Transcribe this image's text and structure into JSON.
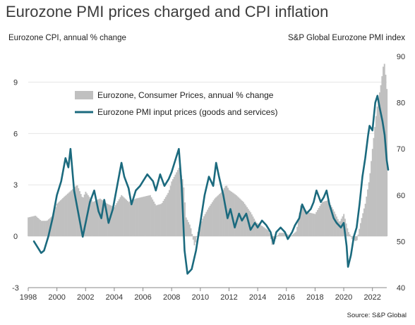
{
  "title": "Eurozone PMI prices charged and CPI inflation",
  "left_axis_title": "Eurozone CPI, annual % change",
  "right_axis_title": "S&P Global Eurozone PMI index",
  "source": "Source: S&P Global",
  "colors": {
    "cpi_bars": "#c0c0c0",
    "pmi_line": "#1b6a7e",
    "grid": "#e6e6e6",
    "axis": "#888888"
  },
  "chart_data": {
    "type": "bar",
    "title": "Eurozone PMI prices charged and CPI inflation",
    "grid": true,
    "legend": "upper-left-center",
    "x_axis": {
      "range": [
        1998,
        2023
      ],
      "ticks": [
        "1998",
        "2000",
        "2002",
        "2004",
        "2006",
        "2008",
        "2010",
        "2012",
        "2014",
        "2016",
        "2018",
        "2020",
        "2022"
      ]
    },
    "y_left": {
      "label": "Eurozone CPI, annual % change",
      "range": [
        -3,
        10.5
      ],
      "ticks": [
        "-3",
        "0",
        "3",
        "6",
        "9"
      ]
    },
    "y_right": {
      "label": "S&P Global Eurozone PMI index",
      "range": [
        40,
        90
      ],
      "ticks": [
        "40",
        "50",
        "60",
        "70",
        "80",
        "90"
      ]
    },
    "series": [
      {
        "name": "Eurozone, Consumer Prices, annual % change",
        "type": "bar",
        "axis": "left",
        "points": [
          [
            1998.0,
            1.1
          ],
          [
            1998.5,
            1.2
          ],
          [
            1998.9,
            0.9
          ],
          [
            1999.3,
            0.9
          ],
          [
            1999.7,
            1.2
          ],
          [
            2000.0,
            1.9
          ],
          [
            2000.5,
            2.3
          ],
          [
            2000.9,
            2.6
          ],
          [
            2001.4,
            3.0
          ],
          [
            2001.8,
            2.2
          ],
          [
            2002.0,
            2.6
          ],
          [
            2002.5,
            2.0
          ],
          [
            2003.0,
            2.2
          ],
          [
            2003.5,
            1.9
          ],
          [
            2004.0,
            1.7
          ],
          [
            2004.5,
            2.4
          ],
          [
            2005.0,
            2.0
          ],
          [
            2005.5,
            2.2
          ],
          [
            2006.0,
            2.3
          ],
          [
            2006.5,
            2.4
          ],
          [
            2006.9,
            1.8
          ],
          [
            2007.3,
            1.9
          ],
          [
            2007.8,
            2.6
          ],
          [
            2008.0,
            3.2
          ],
          [
            2008.5,
            4.0
          ],
          [
            2008.8,
            3.2
          ],
          [
            2009.0,
            1.1
          ],
          [
            2009.3,
            0.6
          ],
          [
            2009.6,
            -0.6
          ],
          [
            2009.9,
            0.5
          ],
          [
            2010.2,
            1.1
          ],
          [
            2010.6,
            1.7
          ],
          [
            2011.0,
            2.2
          ],
          [
            2011.5,
            2.6
          ],
          [
            2011.8,
            3.0
          ],
          [
            2012.0,
            2.7
          ],
          [
            2012.5,
            2.4
          ],
          [
            2013.0,
            2.0
          ],
          [
            2013.5,
            1.4
          ],
          [
            2013.9,
            0.8
          ],
          [
            2014.3,
            0.6
          ],
          [
            2014.8,
            0.3
          ],
          [
            2015.0,
            -0.5
          ],
          [
            2015.5,
            0.2
          ],
          [
            2015.9,
            0.2
          ],
          [
            2016.3,
            0.0
          ],
          [
            2016.7,
            0.3
          ],
          [
            2017.0,
            1.8
          ],
          [
            2017.5,
            1.4
          ],
          [
            2018.0,
            1.3
          ],
          [
            2018.5,
            2.0
          ],
          [
            2018.9,
            2.1
          ],
          [
            2019.3,
            1.5
          ],
          [
            2019.7,
            0.8
          ],
          [
            2020.0,
            1.3
          ],
          [
            2020.3,
            0.3
          ],
          [
            2020.6,
            -0.2
          ],
          [
            2020.9,
            -0.3
          ],
          [
            2021.2,
            0.9
          ],
          [
            2021.5,
            1.9
          ],
          [
            2021.8,
            3.4
          ],
          [
            2022.0,
            5.1
          ],
          [
            2022.3,
            7.4
          ],
          [
            2022.6,
            8.9
          ],
          [
            2022.75,
            9.9
          ],
          [
            2022.85,
            10.1
          ],
          [
            2023.0,
            8.6
          ]
        ]
      },
      {
        "name": "Eurozone PMI input prices (goods and services)",
        "type": "line",
        "axis": "right",
        "points": [
          [
            1998.4,
            50.0
          ],
          [
            1998.7,
            48.5
          ],
          [
            1998.9,
            47.5
          ],
          [
            1999.1,
            48.0
          ],
          [
            1999.4,
            51.0
          ],
          [
            1999.7,
            55.0
          ],
          [
            2000.0,
            60.0
          ],
          [
            2000.3,
            63.0
          ],
          [
            2000.6,
            68.0
          ],
          [
            2000.8,
            66.0
          ],
          [
            2000.95,
            70.0
          ],
          [
            2001.2,
            61.0
          ],
          [
            2001.5,
            56.0
          ],
          [
            2001.8,
            51.0
          ],
          [
            2002.0,
            54.0
          ],
          [
            2002.3,
            58.5
          ],
          [
            2002.6,
            61.0
          ],
          [
            2002.9,
            56.5
          ],
          [
            2003.1,
            55.0
          ],
          [
            2003.3,
            59.0
          ],
          [
            2003.6,
            54.0
          ],
          [
            2003.9,
            57.0
          ],
          [
            2004.2,
            62.0
          ],
          [
            2004.5,
            67.0
          ],
          [
            2004.7,
            64.0
          ],
          [
            2005.0,
            61.5
          ],
          [
            2005.2,
            58.0
          ],
          [
            2005.5,
            61.0
          ],
          [
            2005.8,
            62.0
          ],
          [
            2006.0,
            63.0
          ],
          [
            2006.3,
            64.5
          ],
          [
            2006.7,
            63.0
          ],
          [
            2006.9,
            61.0
          ],
          [
            2007.2,
            64.5
          ],
          [
            2007.5,
            62.0
          ],
          [
            2007.8,
            63.5
          ],
          [
            2008.0,
            65.0
          ],
          [
            2008.3,
            68.0
          ],
          [
            2008.5,
            70.0
          ],
          [
            2008.7,
            62.0
          ],
          [
            2008.9,
            48.0
          ],
          [
            2009.1,
            43.0
          ],
          [
            2009.4,
            44.0
          ],
          [
            2009.7,
            48.0
          ],
          [
            2010.0,
            54.0
          ],
          [
            2010.3,
            60.0
          ],
          [
            2010.6,
            64.0
          ],
          [
            2010.9,
            62.0
          ],
          [
            2011.1,
            67.0
          ],
          [
            2011.3,
            64.0
          ],
          [
            2011.6,
            60.0
          ],
          [
            2011.9,
            55.0
          ],
          [
            2012.1,
            57.0
          ],
          [
            2012.4,
            53.0
          ],
          [
            2012.7,
            56.0
          ],
          [
            2012.9,
            54.5
          ],
          [
            2013.2,
            56.0
          ],
          [
            2013.5,
            52.5
          ],
          [
            2013.8,
            54.0
          ],
          [
            2014.0,
            53.0
          ],
          [
            2014.3,
            54.5
          ],
          [
            2014.6,
            53.5
          ],
          [
            2014.9,
            52.0
          ],
          [
            2015.1,
            49.5
          ],
          [
            2015.3,
            52.0
          ],
          [
            2015.6,
            53.0
          ],
          [
            2015.9,
            52.0
          ],
          [
            2016.1,
            50.5
          ],
          [
            2016.4,
            52.0
          ],
          [
            2016.6,
            53.5
          ],
          [
            2016.9,
            55.0
          ],
          [
            2017.1,
            58.0
          ],
          [
            2017.4,
            56.0
          ],
          [
            2017.7,
            57.0
          ],
          [
            2017.9,
            58.5
          ],
          [
            2018.1,
            61.0
          ],
          [
            2018.4,
            58.5
          ],
          [
            2018.6,
            59.5
          ],
          [
            2018.8,
            61.0
          ],
          [
            2019.0,
            58.0
          ],
          [
            2019.3,
            55.0
          ],
          [
            2019.5,
            54.0
          ],
          [
            2019.8,
            53.0
          ],
          [
            2020.0,
            54.0
          ],
          [
            2020.2,
            49.0
          ],
          [
            2020.3,
            44.5
          ],
          [
            2020.5,
            47.0
          ],
          [
            2020.7,
            51.0
          ],
          [
            2020.9,
            53.0
          ],
          [
            2021.1,
            58.0
          ],
          [
            2021.3,
            64.0
          ],
          [
            2021.5,
            68.0
          ],
          [
            2021.7,
            73.0
          ],
          [
            2021.8,
            75.0
          ],
          [
            2022.0,
            74.0
          ],
          [
            2022.2,
            80.0
          ],
          [
            2022.35,
            81.5
          ],
          [
            2022.5,
            79.0
          ],
          [
            2022.7,
            76.0
          ],
          [
            2022.85,
            73.0
          ],
          [
            2023.0,
            67.5
          ],
          [
            2023.1,
            65.5
          ]
        ]
      }
    ]
  }
}
